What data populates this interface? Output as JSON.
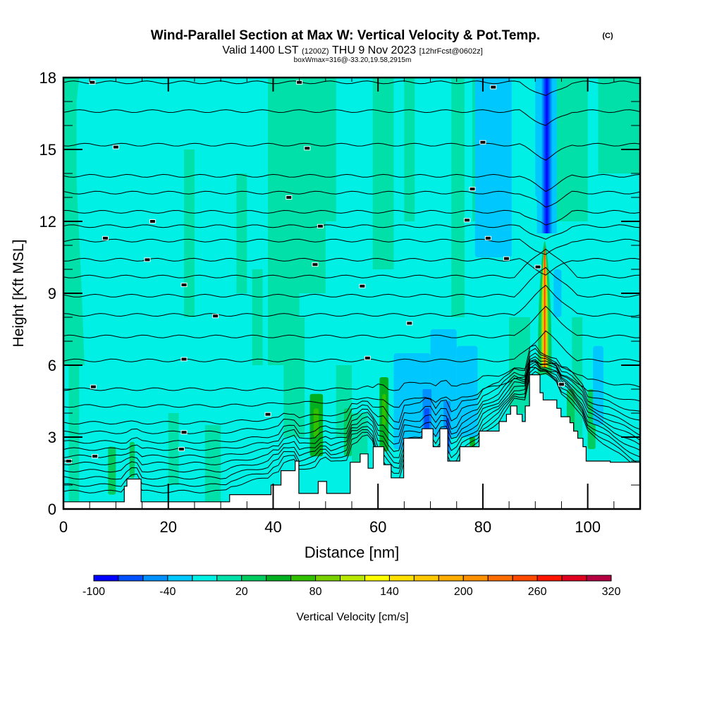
{
  "chart_data": {
    "type": "heatmap",
    "title": "Wind-Parallel Section at Max W: Vertical Velocity & Pot.Temp.",
    "title_suffix": "(C)",
    "subtitle_parts": [
      "Valid 1400 LST",
      "(1200Z)",
      "THU 9 Nov 2023",
      "[12hrFcst@0602z]"
    ],
    "subtitle2": "boxWmax=316@-33.20,19.58,2915m",
    "xlabel": "Distance [nm]",
    "ylabel": "Height [Kft MSL]",
    "xlim": [
      0,
      110
    ],
    "ylim": [
      0,
      18
    ],
    "xticks": [
      "0",
      "20",
      "40",
      "60",
      "80",
      "100"
    ],
    "xtick_values": [
      0,
      20,
      40,
      60,
      80,
      100
    ],
    "yticks": [
      "0",
      "3",
      "6",
      "9",
      "12",
      "15",
      "18"
    ],
    "ytick_values": [
      0,
      3,
      6,
      9,
      12,
      15,
      18
    ],
    "colorbar": {
      "label": "Vertical Velocity [cm/s]",
      "min": -100,
      "max": 320,
      "step": 20,
      "tick_labels": [
        "-100",
        "-40",
        "20",
        "80",
        "140",
        "200",
        "260",
        "320"
      ],
      "tick_values": [
        -100,
        -40,
        20,
        80,
        140,
        200,
        260,
        320
      ],
      "colors": [
        "#0000ff",
        "#0050ff",
        "#0090ff",
        "#00c8ff",
        "#00f0e6",
        "#00e0a8",
        "#00cc60",
        "#00b020",
        "#30c000",
        "#78d000",
        "#b8e800",
        "#ffff00",
        "#ffe000",
        "#ffc800",
        "#ffac00",
        "#ff9000",
        "#ff6c00",
        "#ff4800",
        "#ff1400",
        "#e00020",
        "#b40040"
      ]
    },
    "terrain_profile_kft": {
      "x_nm": [
        0,
        11.6,
        11.6,
        12.1,
        12.1,
        14.8,
        14.8,
        15.8,
        15.8,
        31.7,
        31.7,
        39.6,
        39.6,
        41.5,
        41.5,
        44.2,
        44.2,
        44.9,
        44.9,
        48.6,
        48.6,
        50.2,
        50.2,
        54.7,
        54.7,
        56.6,
        56.6,
        58.1,
        58.1,
        59.1,
        59.1,
        61.1,
        61.1,
        62.5,
        62.5,
        64.9,
        64.9,
        68.4,
        68.4,
        70.5,
        70.5,
        71.8,
        71.8,
        73.3,
        73.3,
        75.6,
        75.6,
        79.3,
        79.3,
        83.1,
        83.1,
        84.5,
        84.5,
        85.3,
        85.3,
        86.5,
        86.5,
        87.5,
        87.5,
        88.1,
        88.1,
        88.9,
        88.9,
        90.9,
        90.9,
        91.5,
        91.5,
        94.1,
        94.1,
        94.9,
        94.9,
        96.6,
        96.6,
        97.3,
        97.3,
        98.1,
        98.1,
        99.1,
        99.1,
        99.7,
        99.7,
        104.3,
        104.3,
        110
      ],
      "h_kft": [
        0.3,
        0.3,
        0.95,
        0.95,
        1.25,
        1.25,
        0.3,
        0.3,
        0.3,
        0.3,
        0.6,
        0.6,
        1.0,
        1.0,
        1.6,
        1.6,
        2.0,
        2.0,
        0.65,
        0.65,
        1.15,
        1.15,
        0.65,
        0.65,
        1.95,
        1.95,
        2.3,
        2.3,
        1.7,
        1.7,
        2.6,
        2.6,
        1.85,
        1.85,
        1.3,
        1.3,
        2.95,
        2.95,
        3.35,
        3.35,
        2.6,
        2.6,
        3.35,
        3.35,
        2.0,
        2.0,
        2.6,
        2.6,
        3.25,
        3.25,
        3.65,
        3.65,
        3.95,
        3.95,
        4.3,
        4.3,
        3.95,
        3.95,
        3.65,
        3.65,
        4.3,
        4.3,
        5.6,
        5.6,
        4.85,
        4.85,
        4.55,
        4.55,
        4.2,
        4.2,
        3.85,
        3.85,
        3.6,
        3.6,
        3.25,
        3.25,
        2.95,
        2.95,
        2.6,
        2.6,
        2.0,
        2.0,
        1.95,
        1.95
      ]
    },
    "wmax_core": {
      "x_nm": 91.8,
      "base_kft": 5.6,
      "top_kft": 11.2,
      "max_cm_s": 316
    },
    "downdraft_core": {
      "x_nm": 92.2,
      "base_kft": 11.5,
      "top_kft": 18.0,
      "min_cm_s": -100
    },
    "theta_contours_kft_at_left": [
      0.7,
      1.0,
      1.3,
      1.6,
      1.9,
      2.2,
      2.5,
      2.8,
      3.2,
      3.6,
      4.3,
      5.0,
      6.2,
      7.2,
      8.1,
      8.9,
      9.7,
      10.4,
      11.2,
      11.8,
      12.4,
      13.2,
      13.9,
      15.2,
      16.6,
      17.8
    ]
  }
}
